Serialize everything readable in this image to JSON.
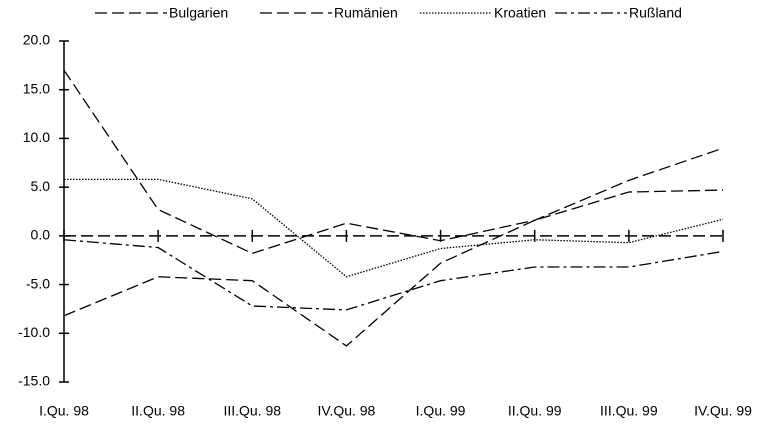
{
  "chart_data": {
    "type": "line",
    "categories": [
      "I.Qu. 98",
      "II.Qu. 98",
      "III.Qu. 98",
      "IV.Qu. 98",
      "I.Qu. 99",
      "II.Qu. 99",
      "III.Qu. 99",
      "IV.Qu. 99"
    ],
    "series": [
      {
        "name": "Bulgarien",
        "color": "#000000",
        "values": [
          17.0,
          2.7,
          -1.8,
          1.3,
          -0.5,
          1.6,
          5.7,
          9.0
        ]
      },
      {
        "name": "Rumänien",
        "color": "#000000",
        "values": [
          -8.2,
          -4.2,
          -4.6,
          -11.3,
          -2.8,
          1.6,
          4.5,
          4.7
        ]
      },
      {
        "name": "Kroatien",
        "color": "#000000",
        "values": [
          5.8,
          5.8,
          3.8,
          -4.2,
          -1.3,
          -0.4,
          -0.7,
          1.7
        ]
      },
      {
        "name": "Rußland",
        "color": "#000000",
        "values": [
          -0.4,
          -1.2,
          -7.2,
          -7.6,
          -4.6,
          -3.2,
          -3.2,
          -1.6
        ]
      }
    ],
    "ylim": [
      -15,
      20
    ],
    "yticks": [
      {
        "value": -15,
        "label": "-15.0"
      },
      {
        "value": -10,
        "label": "-10.0"
      },
      {
        "value": -5,
        "label": "-5.0"
      },
      {
        "value": 0,
        "label": "0.0"
      },
      {
        "value": 5,
        "label": "5.0"
      },
      {
        "value": 10,
        "label": "10.0"
      },
      {
        "value": 15,
        "label": "15.0"
      },
      {
        "value": 20,
        "label": "20.0"
      }
    ]
  }
}
